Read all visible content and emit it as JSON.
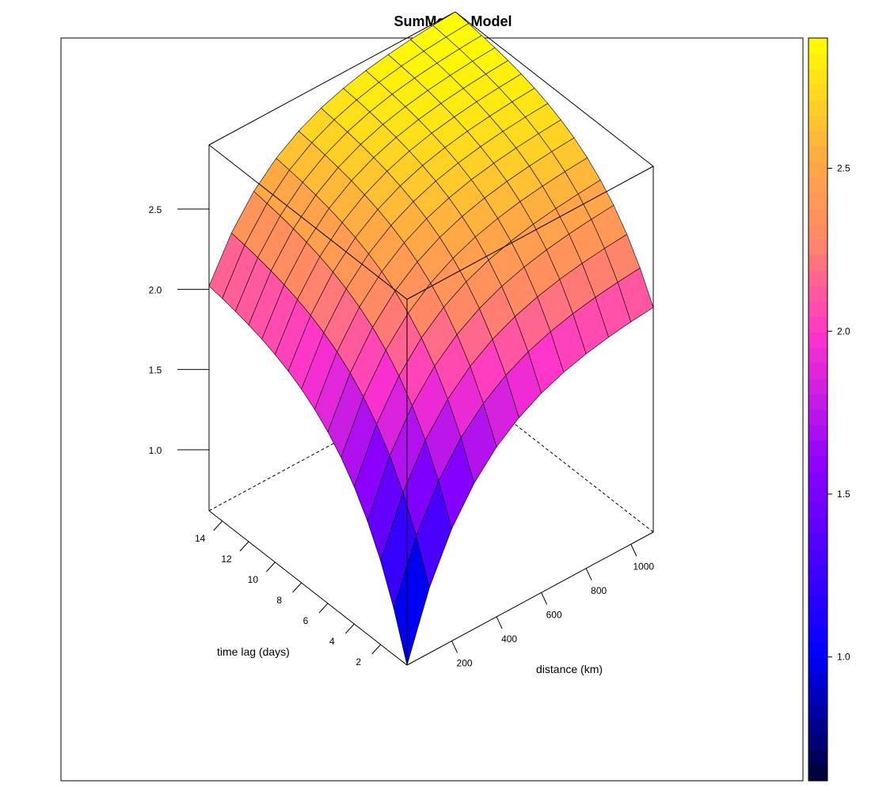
{
  "chart_data": {
    "type": "surface",
    "title": "SumMetric Model",
    "x_axis": {
      "label": "distance (km)",
      "range": [
        0,
        1100
      ],
      "ticks": [
        200,
        400,
        600,
        800,
        1000
      ]
    },
    "y_axis": {
      "label": "time lag (days)",
      "range": [
        0,
        15
      ],
      "ticks": [
        2,
        4,
        6,
        8,
        10,
        12,
        14
      ]
    },
    "z_axis": {
      "label": "",
      "range": [
        0.62,
        2.9
      ],
      "ticks": [
        1.0,
        1.5,
        2.0,
        2.5
      ]
    },
    "surface_corners": {
      "at_origin": 0.62,
      "at_max_distance_zero_lag": 2.02,
      "at_zero_distance_max_lag": 2.02,
      "at_max_distance_max_lag": 2.9
    },
    "grid": {
      "distance_cells": 11,
      "lag_cells": 15
    },
    "colorbar": {
      "range": [
        0.62,
        2.9
      ],
      "ticks": [
        1.0,
        1.5,
        2.0,
        2.5
      ],
      "colors": [
        "#000033",
        "#0000ff",
        "#8a00ff",
        "#ff33cc",
        "#ff8866",
        "#ffaa44",
        "#ffff00"
      ]
    }
  }
}
